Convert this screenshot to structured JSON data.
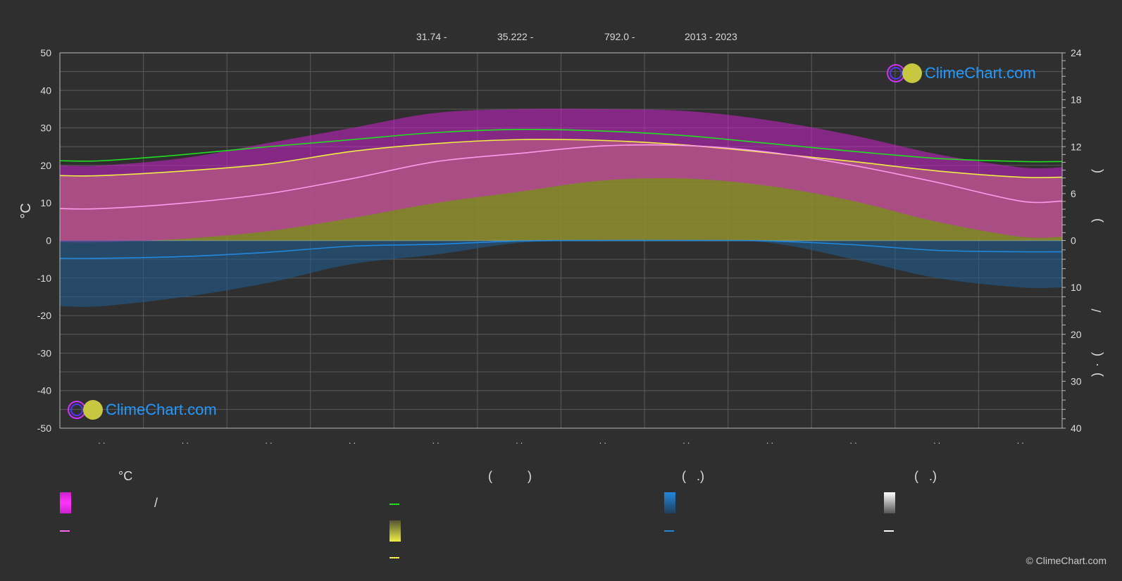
{
  "header": {
    "latitude": "31.74 -",
    "longitude": "35.222 -",
    "elevation": "792.0 -",
    "years": "2013 - 2023"
  },
  "watermark": "ClimeChart.com",
  "copyright": "© ClimeChart.com",
  "legend": {
    "temp_heading": "°C",
    "slash": "/",
    "paren_group_1": "(          )",
    "paren_group_2": "(   .)",
    "paren_group_3": "(   .)"
  },
  "colors": {
    "background": "#2f2f2f",
    "grid": "#5a5a5a",
    "daylight": "#22dd22",
    "sunshine": "#eeee44",
    "avg_max": "#ff99ee",
    "precip": "#2288dd",
    "precip_fill": "#1f5c8c",
    "temp_range_fill": "#cc22cc",
    "sunshine_fill": "#8c8c2f",
    "watermark": "#2299ff"
  },
  "chart_data": {
    "type": "line",
    "x_months": [
      1,
      2,
      3,
      4,
      5,
      6,
      7,
      8,
      9,
      10,
      11,
      12
    ],
    "x_tick_labels": [
      ". .",
      ". .",
      ". .",
      ". .",
      ". .",
      ". .",
      ". .",
      ". .",
      ". .",
      ". .",
      ". .",
      ". ."
    ],
    "left_axis": {
      "label": "°C",
      "ylim": [
        -50,
        50
      ],
      "ticks": [
        50,
        40,
        30,
        20,
        10,
        0,
        -10,
        -20,
        -30,
        -40,
        -50
      ]
    },
    "right_axis_top": {
      "ylim": [
        0,
        24
      ],
      "ticks": [
        24,
        18,
        12,
        6,
        0
      ],
      "label_glyphs": [
        "(",
        ")"
      ]
    },
    "right_axis_bottom": {
      "ylim": [
        0,
        40
      ],
      "ticks": [
        0,
        10,
        20,
        30,
        40
      ],
      "label_glyphs": [
        "/",
        "(",
        "·",
        ")"
      ]
    },
    "grid": true,
    "series": [
      {
        "key": "daylight",
        "axis": "hours",
        "values": [
          10.2,
          11.0,
          12.0,
          12.9,
          13.8,
          14.2,
          14.0,
          13.4,
          12.4,
          11.4,
          10.5,
          10.1
        ]
      },
      {
        "key": "sunshine",
        "axis": "hours",
        "values": [
          8.3,
          8.9,
          9.8,
          11.4,
          12.4,
          12.9,
          12.8,
          12.2,
          11.2,
          10.1,
          8.9,
          8.1
        ]
      },
      {
        "key": "avg_max_temp",
        "axis": "celsius",
        "values": [
          8.5,
          10.0,
          12.5,
          16.5,
          21.0,
          23.2,
          25.2,
          25.3,
          23.5,
          20.0,
          15.5,
          10.5
        ]
      },
      {
        "key": "precipitation_mm",
        "axis": "mm",
        "values": [
          3.8,
          3.4,
          2.5,
          1.2,
          0.8,
          0.1,
          0.0,
          0.0,
          0.1,
          0.9,
          2.1,
          2.4
        ]
      }
    ],
    "bands": {
      "temperature_range": {
        "low": [
          -0.5,
          0.5,
          2.5,
          6.0,
          10.0,
          13.0,
          16.0,
          16.5,
          14.5,
          10.5,
          5.0,
          1.0
        ],
        "high": [
          20.0,
          22.0,
          26.0,
          30.0,
          34.0,
          35.0,
          35.0,
          34.5,
          32.0,
          28.0,
          23.0,
          19.5
        ]
      },
      "sunshine_hours_fill": [
        8.3,
        8.9,
        9.8,
        11.4,
        12.4,
        12.9,
        12.8,
        12.2,
        11.2,
        10.1,
        8.9,
        8.1
      ],
      "precip_mm_fill": [
        14,
        12,
        9,
        5,
        3,
        0.5,
        0,
        0,
        0.5,
        4,
        8,
        10
      ]
    }
  }
}
